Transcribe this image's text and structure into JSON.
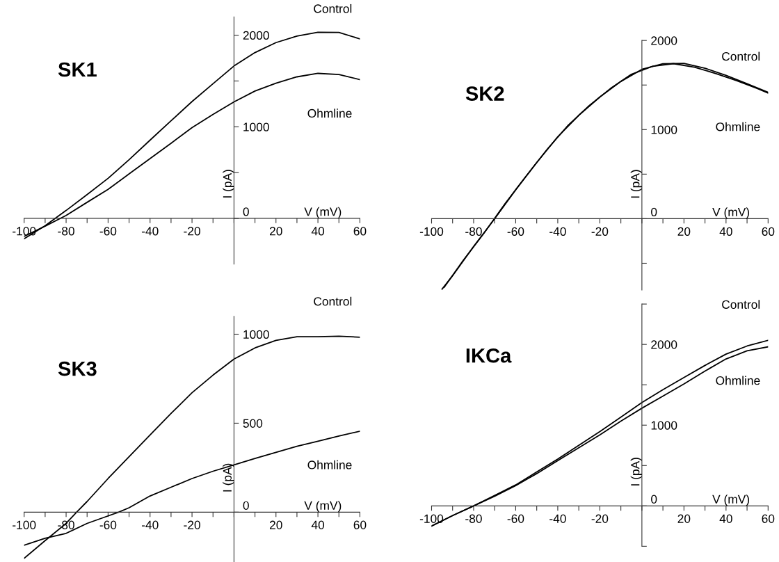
{
  "chart_data": [
    {
      "type": "line",
      "title": "SK1",
      "xlabel": "V (mV)",
      "ylabel": "I (pA)",
      "xlim": [
        -100,
        60
      ],
      "ylim": [
        -500,
        2200
      ],
      "xticks": [
        -100,
        {
          "value": -90,
          "label": null
        },
        -80,
        {
          "value": -70,
          "label": null
        },
        -60,
        {
          "value": -50,
          "label": null
        },
        -40,
        {
          "value": -30,
          "label": null
        },
        -20,
        {
          "value": -10,
          "label": null
        },
        {
          "value": 0,
          "label": null
        },
        {
          "value": 10,
          "label": null
        },
        20,
        {
          "value": 30,
          "label": null
        },
        40,
        {
          "value": 50,
          "label": null
        },
        60
      ],
      "yticks": [
        0,
        {
          "value": 500,
          "label": null
        },
        1000,
        {
          "value": 1500,
          "label": null
        },
        2000
      ],
      "series": [
        {
          "name": "Control",
          "color": "#000000",
          "x": [
            -100,
            -90,
            -80,
            -70,
            -60,
            -50,
            -40,
            -30,
            -20,
            -10,
            0,
            10,
            20,
            30,
            40,
            50,
            60
          ],
          "values": [
            -223,
            -80,
            86,
            260,
            437,
            640,
            854,
            1065,
            1275,
            1470,
            1664,
            1810,
            1919,
            1990,
            2032,
            2030,
            1959
          ]
        },
        {
          "name": "Ohmline",
          "color": "#000000",
          "x": [
            -100,
            -90,
            -80,
            -70,
            -60,
            -50,
            -40,
            -30,
            -20,
            -10,
            0,
            10,
            20,
            30,
            40,
            50,
            60
          ],
          "values": [
            -196,
            -85,
            32,
            175,
            316,
            485,
            652,
            820,
            990,
            1135,
            1272,
            1390,
            1476,
            1545,
            1583,
            1570,
            1515
          ]
        }
      ]
    },
    {
      "type": "line",
      "title": "SK2",
      "xlabel": "V (mV)",
      "ylabel": "I (pA)",
      "xlim": [
        -100,
        60
      ],
      "ylim": [
        -800,
        2000
      ],
      "xticks": [
        -100,
        {
          "value": -90,
          "label": null
        },
        -80,
        {
          "value": -70,
          "label": null
        },
        -60,
        {
          "value": -50,
          "label": null
        },
        -40,
        {
          "value": -30,
          "label": null
        },
        -20,
        {
          "value": -10,
          "label": null
        },
        {
          "value": 0,
          "label": null
        },
        {
          "value": 10,
          "label": null
        },
        20,
        {
          "value": 30,
          "label": null
        },
        40,
        {
          "value": 50,
          "label": null
        },
        60
      ],
      "yticks": [
        {
          "value": -500,
          "label": null
        },
        0,
        {
          "value": 500,
          "label": null
        },
        1000,
        {
          "value": 1500,
          "label": null
        },
        2000
      ],
      "series": [
        {
          "name": "Control",
          "color": "#000000",
          "x": [
            -95,
            -90,
            -80,
            -70,
            -60,
            -50,
            -40,
            -30,
            -20,
            -10,
            0,
            10,
            20,
            30,
            40,
            50,
            60
          ],
          "values": [
            -790,
            -640,
            -311,
            0,
            324,
            630,
            919,
            1160,
            1365,
            1540,
            1676,
            1738,
            1743,
            1689,
            1608,
            1514,
            1419
          ]
        },
        {
          "name": "Ohmline",
          "color": "#000000",
          "x": [
            -94,
            -85,
            -75,
            -65,
            -55,
            -45,
            -35,
            -25,
            -15,
            -5,
            5,
            15,
            25,
            35,
            45,
            55,
            60
          ],
          "values": [
            -770,
            -470,
            -160,
            170,
            480,
            780,
            1050,
            1270,
            1460,
            1620,
            1710,
            1740,
            1700,
            1630,
            1550,
            1460,
            1410
          ]
        }
      ]
    },
    {
      "type": "line",
      "title": "SK3",
      "xlabel": "V (mV)",
      "ylabel": "I (pA)",
      "xlim": [
        -100,
        60
      ],
      "ylim": [
        -280,
        1100
      ],
      "xticks": [
        -100,
        {
          "value": -90,
          "label": null
        },
        -80,
        {
          "value": -70,
          "label": null
        },
        -60,
        {
          "value": -50,
          "label": null
        },
        -40,
        {
          "value": -30,
          "label": null
        },
        -20,
        {
          "value": -10,
          "label": null
        },
        {
          "value": 0,
          "label": null
        },
        {
          "value": 10,
          "label": null
        },
        20,
        {
          "value": 30,
          "label": null
        },
        40,
        {
          "value": 50,
          "label": null
        },
        60
      ],
      "yticks": [
        0,
        500,
        1000
      ],
      "series": [
        {
          "name": "Control",
          "color": "#000000",
          "x": [
            -100,
            -90,
            -80,
            -75,
            -70,
            -60,
            -50,
            -40,
            -30,
            -20,
            -10,
            0,
            10,
            20,
            30,
            40,
            50,
            60
          ],
          "values": [
            -259,
            -160,
            -63,
            0,
            60,
            189,
            312,
            434,
            555,
            671,
            770,
            860,
            923,
            965,
            986,
            986,
            989,
            983
          ]
        },
        {
          "name": "Ohmline",
          "color": "#000000",
          "x": [
            -100,
            -90,
            -80,
            -70,
            -60,
            -55,
            -50,
            -40,
            -30,
            -20,
            -10,
            0,
            10,
            20,
            30,
            40,
            50,
            60
          ],
          "values": [
            -186,
            -147,
            -119,
            -63,
            -21,
            0,
            25,
            91,
            140,
            189,
            230,
            266,
            302,
            336,
            370,
            399,
            428,
            455
          ]
        }
      ]
    },
    {
      "type": "line",
      "title": "IKCa",
      "xlabel": "V (mV)",
      "ylabel": "I (pA)",
      "xlim": [
        -100,
        60
      ],
      "ylim": [
        -500,
        2500
      ],
      "xticks": [
        -100,
        {
          "value": -90,
          "label": null
        },
        -80,
        {
          "value": -70,
          "label": null
        },
        -60,
        {
          "value": -50,
          "label": null
        },
        -40,
        {
          "value": -30,
          "label": null
        },
        -20,
        {
          "value": -10,
          "label": null
        },
        {
          "value": 0,
          "label": null
        },
        {
          "value": 10,
          "label": null
        },
        20,
        {
          "value": 30,
          "label": null
        },
        40,
        {
          "value": 50,
          "label": null
        },
        60
      ],
      "yticks": [
        {
          "value": -500,
          "label": null
        },
        0,
        {
          "value": 500,
          "label": null
        },
        1000,
        {
          "value": 1500,
          "label": null
        },
        2000,
        {
          "value": 2500,
          "label": null
        }
      ],
      "series": [
        {
          "name": "Control",
          "color": "#000000",
          "x": [
            -100,
            -90,
            -80,
            -70,
            -60,
            -50,
            -40,
            -30,
            -20,
            -10,
            0,
            10,
            20,
            30,
            40,
            50,
            60
          ],
          "values": [
            -250,
            -120,
            0,
            130,
            260,
            420,
            580,
            750,
            920,
            1100,
            1280,
            1440,
            1590,
            1740,
            1880,
            1980,
            2050
          ]
        },
        {
          "name": "Ohmline",
          "color": "#000000",
          "x": [
            -100,
            -90,
            -80,
            -70,
            -60,
            -50,
            -40,
            -30,
            -20,
            -10,
            0,
            10,
            20,
            30,
            40,
            50,
            60
          ],
          "values": [
            -250,
            -120,
            0,
            120,
            250,
            400,
            560,
            720,
            880,
            1050,
            1210,
            1360,
            1510,
            1670,
            1820,
            1920,
            1970
          ]
        }
      ]
    }
  ]
}
